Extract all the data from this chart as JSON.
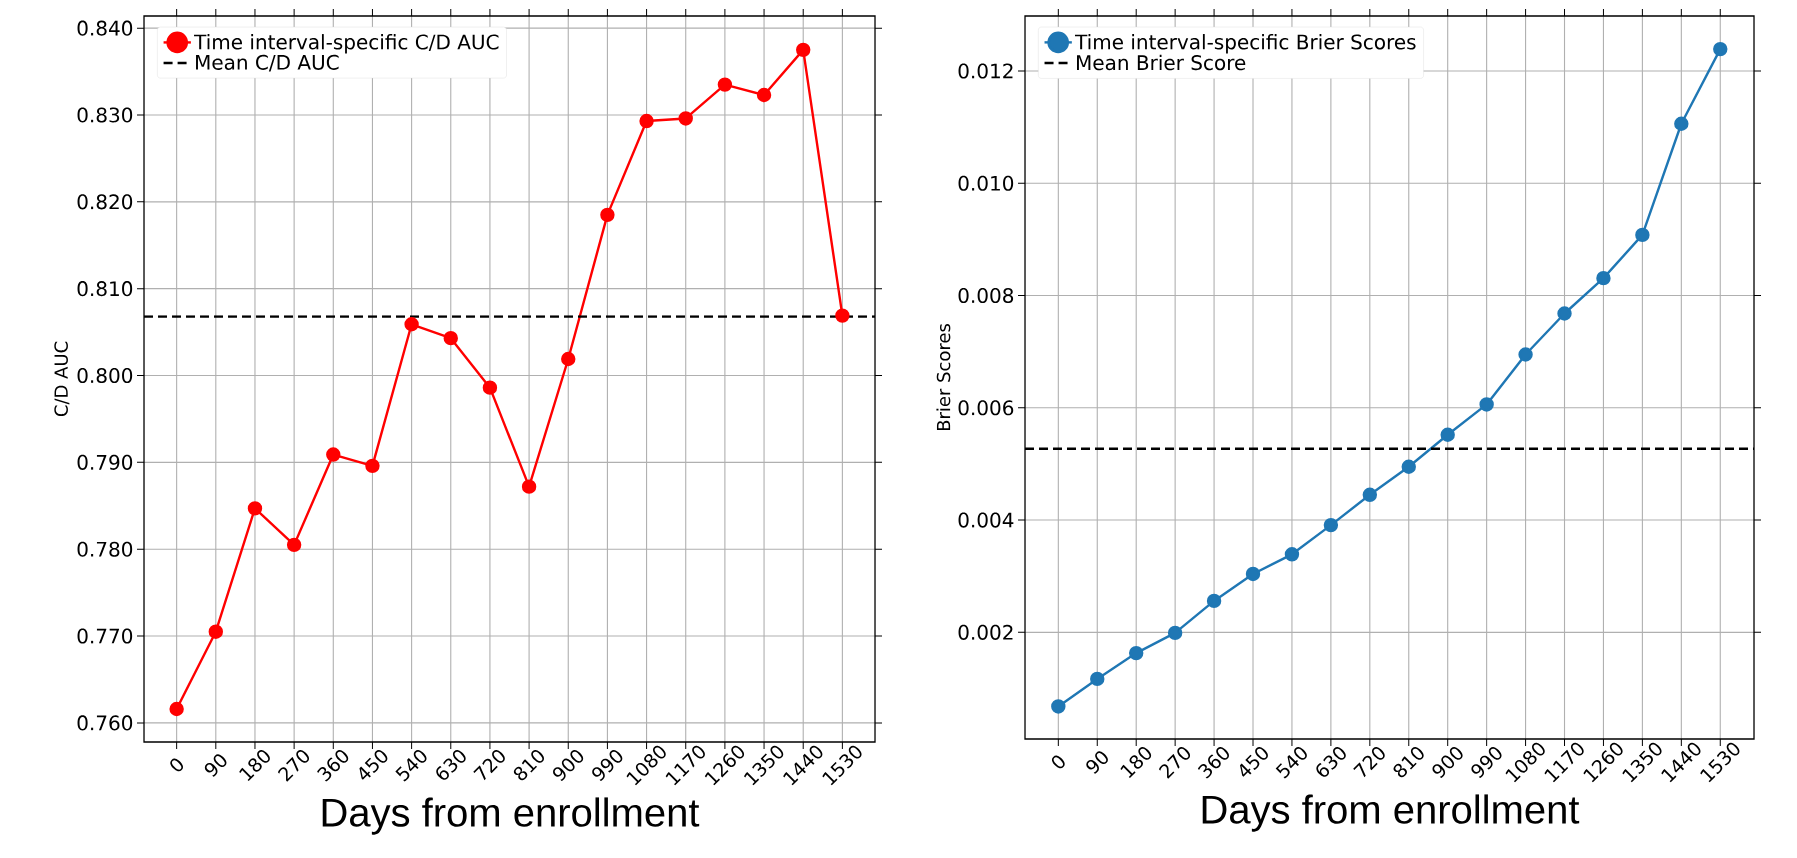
{
  "chart_data": [
    {
      "type": "line",
      "xlabel": "Days from enrollment",
      "ylabel": "C/D AUC",
      "x": [
        0,
        90,
        180,
        270,
        360,
        450,
        540,
        630,
        720,
        810,
        900,
        990,
        1080,
        1170,
        1260,
        1350,
        1440,
        1530
      ],
      "series": [
        {
          "name": "Time interval-specific C/D AUC",
          "color": "#ff0000",
          "values": [
            0.7616,
            0.7705,
            0.7847,
            0.7805,
            0.7909,
            0.7896,
            0.8059,
            0.8043,
            0.7986,
            0.7872,
            0.8019,
            0.8185,
            0.8293,
            0.8296,
            0.8335,
            0.8323,
            0.8375,
            0.8069
          ]
        }
      ],
      "ref_lines": [
        {
          "axis": "y",
          "value": 0.8068,
          "label": "Mean C/D AUC",
          "color": "#000000",
          "line_style": "dashed"
        }
      ],
      "xlim": [
        -75,
        1605
      ],
      "ylim": [
        0.7578,
        0.8414
      ],
      "xticks": [
        0,
        90,
        180,
        270,
        360,
        450,
        540,
        630,
        720,
        810,
        900,
        990,
        1080,
        1170,
        1260,
        1350,
        1440,
        1530
      ],
      "yticks": [
        {
          "value": 0.76,
          "label": "0.760"
        },
        {
          "value": 0.77,
          "label": "0.770"
        },
        {
          "value": 0.78,
          "label": "0.780"
        },
        {
          "value": 0.79,
          "label": "0.790"
        },
        {
          "value": 0.8,
          "label": "0.800"
        },
        {
          "value": 0.81,
          "label": "0.810"
        },
        {
          "value": 0.82,
          "label": "0.820"
        },
        {
          "value": 0.83,
          "label": "0.830"
        },
        {
          "value": 0.84,
          "label": "0.840"
        }
      ],
      "grid": true,
      "legend": "top left",
      "marker": "circle",
      "line_style": "solid"
    },
    {
      "type": "line",
      "xlabel": "Days from enrollment",
      "ylabel": "Brier Scores",
      "x": [
        0,
        90,
        180,
        270,
        360,
        450,
        540,
        630,
        720,
        810,
        900,
        990,
        1080,
        1170,
        1260,
        1350,
        1440,
        1530
      ],
      "series": [
        {
          "name": "Time interval-specific Brier Scores",
          "color": "#1f77b4",
          "values": [
            0.00068,
            0.00117,
            0.00163,
            0.00199,
            0.00256,
            0.00304,
            0.00339,
            0.00391,
            0.00445,
            0.00495,
            0.00552,
            0.00606,
            0.00695,
            0.00768,
            0.00831,
            0.00908,
            0.01106,
            0.01239
          ]
        }
      ],
      "ref_lines": [
        {
          "axis": "y",
          "value": 0.00527,
          "label": "Mean Brier Score",
          "color": "#000000",
          "line_style": "dashed"
        }
      ],
      "xlim": [
        -77,
        1608
      ],
      "ylim": [
        0.0001,
        0.01298
      ],
      "xticks": [
        0,
        90,
        180,
        270,
        360,
        450,
        540,
        630,
        720,
        810,
        900,
        990,
        1080,
        1170,
        1260,
        1350,
        1440,
        1530
      ],
      "yticks": [
        0.002,
        0.004,
        0.006,
        0.008,
        {
          "value": 0.01,
          "label": "0.010"
        },
        0.012
      ],
      "grid": true,
      "legend": "top left",
      "marker": "circle",
      "line_style": "solid"
    }
  ]
}
